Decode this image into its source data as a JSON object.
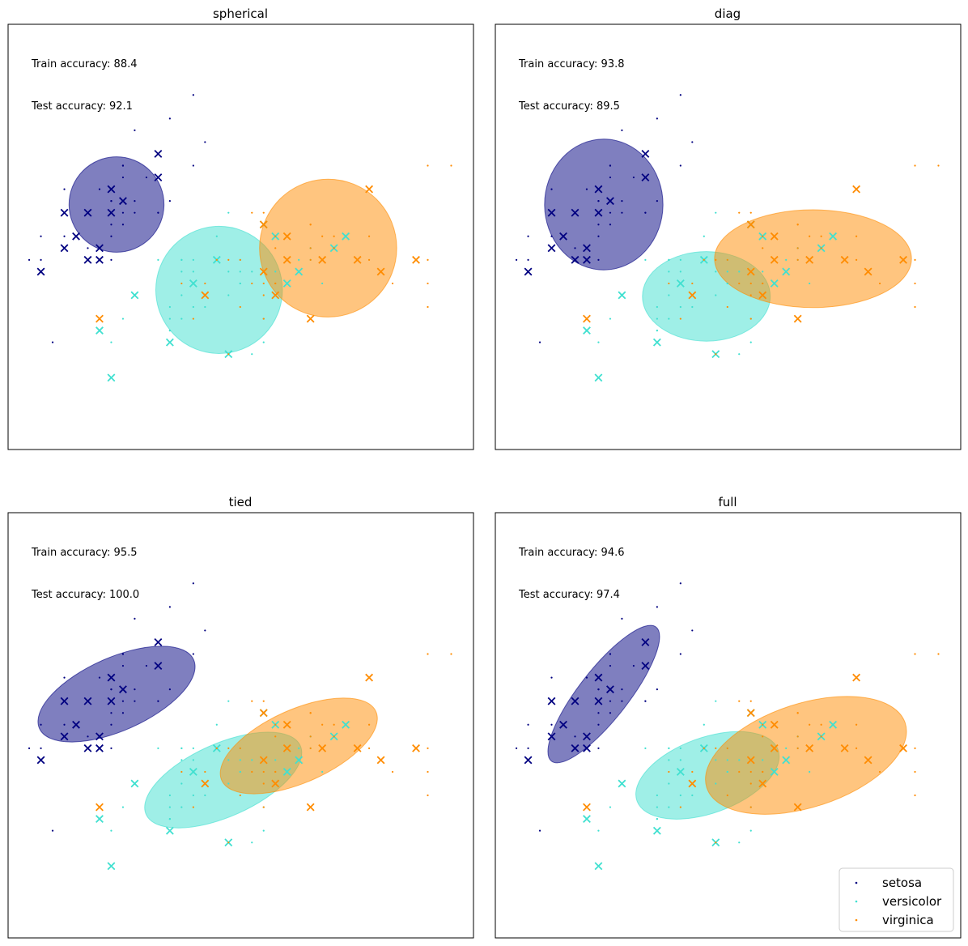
{
  "chart_data": {
    "type": "scatter",
    "xlim": [
      4.12,
      8.09
    ],
    "ylim": [
      1.39,
      5.0
    ],
    "axes_ticks": false,
    "grid": false,
    "legend_placement": "lower-right of last panel",
    "classes": [
      {
        "name": "setosa",
        "color": "#000080",
        "train_points": [
          [
            4.3,
            3.0
          ],
          [
            5.8,
            4.0
          ],
          [
            5.7,
            4.4
          ],
          [
            5.4,
            3.9
          ],
          [
            5.1,
            3.5
          ],
          [
            5.7,
            3.8
          ],
          [
            5.1,
            3.8
          ],
          [
            5.4,
            3.4
          ],
          [
            5.1,
            3.7
          ],
          [
            4.6,
            3.6
          ],
          [
            5.1,
            3.3
          ],
          [
            4.8,
            3.4
          ],
          [
            5.0,
            3.0
          ],
          [
            5.0,
            3.4
          ],
          [
            5.2,
            3.5
          ],
          [
            5.2,
            3.4
          ],
          [
            4.7,
            3.2
          ],
          [
            4.8,
            3.1
          ],
          [
            5.4,
            3.4
          ],
          [
            5.2,
            4.1
          ],
          [
            5.5,
            4.2
          ],
          [
            4.9,
            3.1
          ],
          [
            5.0,
            3.2
          ],
          [
            5.5,
            3.5
          ],
          [
            4.9,
            3.6
          ],
          [
            4.4,
            3.0
          ],
          [
            5.1,
            3.4
          ],
          [
            5.0,
            3.5
          ],
          [
            4.5,
            2.3
          ],
          [
            4.4,
            3.2
          ],
          [
            5.0,
            3.5
          ],
          [
            5.1,
            3.8
          ],
          [
            4.8,
            3.0
          ],
          [
            5.1,
            3.8
          ],
          [
            4.6,
            3.2
          ],
          [
            5.3,
            3.7
          ],
          [
            5.0,
            3.3
          ]
        ],
        "test_points": [
          [
            5.1,
            3.5
          ],
          [
            4.9,
            3.0
          ],
          [
            4.7,
            3.2
          ],
          [
            4.6,
            3.1
          ],
          [
            5.0,
            3.6
          ],
          [
            5.4,
            3.9
          ],
          [
            4.6,
            3.4
          ],
          [
            5.0,
            3.4
          ],
          [
            4.4,
            2.9
          ],
          [
            4.9,
            3.1
          ],
          [
            5.4,
            3.7
          ],
          [
            4.8,
            3.4
          ],
          [
            4.8,
            3.0
          ]
        ]
      },
      {
        "name": "versicolor",
        "color": "#40E0D0",
        "train_points": [
          [
            6.1,
            2.9
          ],
          [
            5.6,
            2.9
          ],
          [
            6.7,
            3.1
          ],
          [
            5.6,
            3.0
          ],
          [
            5.8,
            2.7
          ],
          [
            6.2,
            2.2
          ],
          [
            5.6,
            2.5
          ],
          [
            5.9,
            3.2
          ],
          [
            6.1,
            2.8
          ],
          [
            6.3,
            2.5
          ],
          [
            6.1,
            2.8
          ],
          [
            6.4,
            2.9
          ],
          [
            6.6,
            3.0
          ],
          [
            6.8,
            2.8
          ],
          [
            6.7,
            3.0
          ],
          [
            6.0,
            2.9
          ],
          [
            5.7,
            2.6
          ],
          [
            5.5,
            2.4
          ],
          [
            5.5,
            2.4
          ],
          [
            5.8,
            2.7
          ],
          [
            6.0,
            2.7
          ],
          [
            5.4,
            3.0
          ],
          [
            6.0,
            3.4
          ],
          [
            6.7,
            3.1
          ],
          [
            6.3,
            2.3
          ],
          [
            5.6,
            3.0
          ],
          [
            5.5,
            2.5
          ],
          [
            5.5,
            2.6
          ],
          [
            6.1,
            3.0
          ],
          [
            5.8,
            2.6
          ],
          [
            5.0,
            2.3
          ],
          [
            5.6,
            2.7
          ],
          [
            5.7,
            3.0
          ],
          [
            5.7,
            2.9
          ],
          [
            6.2,
            2.9
          ],
          [
            5.1,
            2.5
          ],
          [
            5.7,
            2.8
          ]
        ],
        "test_points": [
          [
            7.0,
            3.2
          ],
          [
            6.4,
            3.2
          ],
          [
            6.9,
            3.1
          ],
          [
            5.5,
            2.3
          ],
          [
            6.5,
            2.8
          ],
          [
            5.7,
            2.8
          ],
          [
            6.3,
            3.3
          ],
          [
            4.9,
            2.4
          ],
          [
            6.6,
            2.9
          ],
          [
            5.2,
            2.7
          ],
          [
            5.0,
            2.0
          ],
          [
            5.9,
            3.0
          ],
          [
            6.0,
            2.2
          ]
        ]
      },
      {
        "name": "virginica",
        "color": "#FF8C00",
        "train_points": [
          [
            5.7,
            2.5
          ],
          [
            5.8,
            2.8
          ],
          [
            6.4,
            3.2
          ],
          [
            6.5,
            3.0
          ],
          [
            7.7,
            3.8
          ],
          [
            7.7,
            2.6
          ],
          [
            6.0,
            2.2
          ],
          [
            6.9,
            3.2
          ],
          [
            5.6,
            2.8
          ],
          [
            7.7,
            2.8
          ],
          [
            6.3,
            2.7
          ],
          [
            6.7,
            3.3
          ],
          [
            7.2,
            3.2
          ],
          [
            6.2,
            2.8
          ],
          [
            6.1,
            3.0
          ],
          [
            6.4,
            2.8
          ],
          [
            7.2,
            3.0
          ],
          [
            7.4,
            2.8
          ],
          [
            7.9,
            3.8
          ],
          [
            6.4,
            2.8
          ],
          [
            6.3,
            2.8
          ],
          [
            6.1,
            2.6
          ],
          [
            7.7,
            3.0
          ],
          [
            6.3,
            3.4
          ],
          [
            6.4,
            3.1
          ],
          [
            6.0,
            3.0
          ],
          [
            6.9,
            3.1
          ],
          [
            6.7,
            3.1
          ],
          [
            6.9,
            3.1
          ],
          [
            5.8,
            2.7
          ],
          [
            6.8,
            3.2
          ],
          [
            6.7,
            3.3
          ],
          [
            6.7,
            3.0
          ],
          [
            6.3,
            2.5
          ],
          [
            6.5,
            3.0
          ],
          [
            6.2,
            3.4
          ],
          [
            5.9,
            3.0
          ]
        ],
        "test_points": [
          [
            6.3,
            3.3
          ],
          [
            5.8,
            2.7
          ],
          [
            7.1,
            3.0
          ],
          [
            6.3,
            2.9
          ],
          [
            6.5,
            3.0
          ],
          [
            7.6,
            3.0
          ],
          [
            4.9,
            2.5
          ],
          [
            7.3,
            2.9
          ],
          [
            6.7,
            2.5
          ],
          [
            7.2,
            3.6
          ],
          [
            6.5,
            3.2
          ],
          [
            6.4,
            2.7
          ],
          [
            6.8,
            3.0
          ]
        ]
      }
    ],
    "panels": [
      {
        "title": "spherical",
        "train_accuracy": "Train accuracy: 88.4",
        "test_accuracy": "Test accuracy: 92.1",
        "ellipses": [
          {
            "class": "setosa",
            "center": [
              5.045,
              3.47
            ],
            "width": 0.81,
            "height": 0.81,
            "angle": 0
          },
          {
            "class": "versicolor",
            "center": [
              5.92,
              2.745
            ],
            "width": 1.08,
            "height": 1.08,
            "angle": 0
          },
          {
            "class": "virginica",
            "center": [
              6.85,
              3.1
            ],
            "width": 1.17,
            "height": 1.17,
            "angle": 0
          }
        ]
      },
      {
        "title": "diag",
        "train_accuracy": "Train accuracy: 93.8",
        "test_accuracy": "Test accuracy: 89.5",
        "ellipses": [
          {
            "class": "setosa",
            "center": [
              5.045,
              3.47
            ],
            "width": 1.01,
            "height": 1.11,
            "angle": 0
          },
          {
            "class": "versicolor",
            "center": [
              5.92,
              2.69
            ],
            "width": 1.09,
            "height": 0.76,
            "angle": 0
          },
          {
            "class": "virginica",
            "center": [
              6.83,
              3.01
            ],
            "width": 1.68,
            "height": 0.83,
            "angle": 0
          }
        ]
      },
      {
        "title": "tied",
        "train_accuracy": "Train accuracy: 95.5",
        "test_accuracy": "Test accuracy: 100.0",
        "ellipses": [
          {
            "class": "setosa",
            "center": [
              5.045,
              3.46
            ],
            "width": 1.44,
            "height": 0.62,
            "angle": 24
          },
          {
            "class": "versicolor",
            "center": [
              5.955,
              2.73
            ],
            "width": 1.44,
            "height": 0.62,
            "angle": 24
          },
          {
            "class": "virginica",
            "center": [
              6.6,
              3.02
            ],
            "width": 1.44,
            "height": 0.62,
            "angle": 24
          }
        ]
      },
      {
        "title": "full",
        "train_accuracy": "Train accuracy: 94.6",
        "test_accuracy": "Test accuracy: 97.4",
        "ellipses": [
          {
            "class": "setosa",
            "center": [
              5.045,
              3.46
            ],
            "width": 1.45,
            "height": 0.42,
            "angle": 52
          },
          {
            "class": "versicolor",
            "center": [
              5.93,
              2.77
            ],
            "width": 1.28,
            "height": 0.64,
            "angle": 20
          },
          {
            "class": "virginica",
            "center": [
              6.77,
              2.94
            ],
            "width": 1.78,
            "height": 0.88,
            "angle": 18
          }
        ]
      }
    ],
    "legend": [
      "setosa",
      "versicolor",
      "virginica"
    ]
  }
}
